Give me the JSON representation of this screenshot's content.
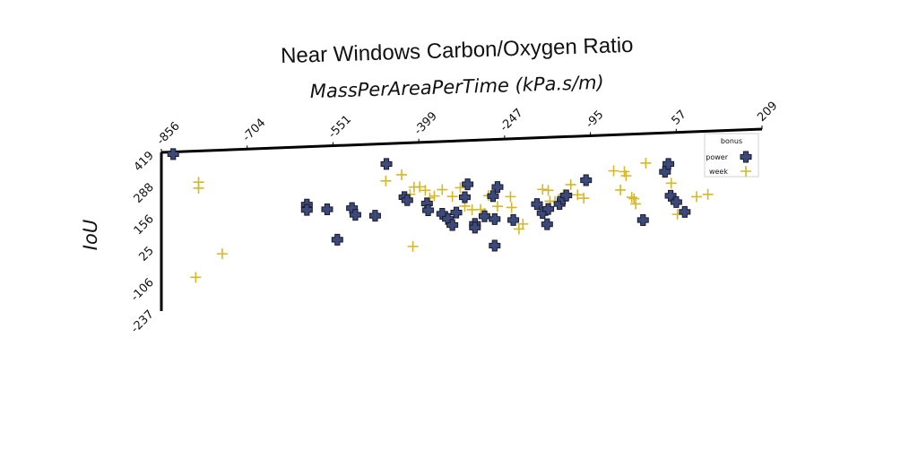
{
  "chart_data": {
    "type": "scatter",
    "title": "Near Windows Carbon/Oxygen Ratio",
    "xlabel": "MassPerAreaPerTime (kPa.s/m)",
    "ylabel": "IoU",
    "x_ticks": [
      "-856",
      "-704",
      "-551",
      "-399",
      "-247",
      "-95",
      "57",
      "209"
    ],
    "y_ticks": [
      "419",
      "288",
      "156",
      "25",
      "-106",
      "-237"
    ],
    "xlim": [
      -856,
      209
    ],
    "ylim": [
      -237,
      419
    ],
    "x_axis_position": "top",
    "grid": false,
    "legend": {
      "title": "bonus",
      "position": "top-right"
    },
    "series": [
      {
        "name": "power",
        "marker": "filled-plus",
        "color": "#3b4a7a",
        "points": [
          [
            -835,
            410
          ],
          [
            -598,
            180
          ],
          [
            -598,
            158
          ],
          [
            -562,
            157
          ],
          [
            -518,
            158
          ],
          [
            -512,
            130
          ],
          [
            -477,
            123
          ],
          [
            -544,
            30
          ],
          [
            -457,
            335
          ],
          [
            -425,
            195
          ],
          [
            -420,
            182
          ],
          [
            -385,
            165
          ],
          [
            -383,
            137
          ],
          [
            -358,
            120
          ],
          [
            -348,
            98
          ],
          [
            -340,
            72
          ],
          [
            -333,
            123
          ],
          [
            -318,
            185
          ],
          [
            -313,
            238
          ],
          [
            -300,
            73
          ],
          [
            -300,
            58
          ],
          [
            -283,
            103
          ],
          [
            -268,
            185
          ],
          [
            -265,
            90
          ],
          [
            -260,
            222
          ],
          [
            -232,
            83
          ],
          [
            -190,
            145
          ],
          [
            -180,
            107
          ],
          [
            -170,
            123
          ],
          [
            -150,
            142
          ],
          [
            -144,
            163
          ],
          [
            -138,
            176
          ],
          [
            -103,
            236
          ],
          [
            -2,
            62
          ],
          [
            37,
            258
          ],
          [
            43,
            290
          ],
          [
            47,
            158
          ],
          [
            57,
            131
          ],
          [
            72,
            89
          ],
          [
            -172,
            60
          ],
          [
            -265,
            -20
          ]
        ]
      },
      {
        "name": "week",
        "marker": "plus",
        "color": "#d4b82a",
        "points": [
          [
            -790,
            290
          ],
          [
            -790,
            265
          ],
          [
            -795,
            -103
          ],
          [
            -748,
            -10
          ],
          [
            -458,
            265
          ],
          [
            -430,
            288
          ],
          [
            -415,
            206
          ],
          [
            -408,
            235
          ],
          [
            -398,
            235
          ],
          [
            -388,
            220
          ],
          [
            -380,
            188
          ],
          [
            -372,
            195
          ],
          [
            -358,
            220
          ],
          [
            -340,
            190
          ],
          [
            -326,
            225
          ],
          [
            -318,
            148
          ],
          [
            -305,
            132
          ],
          [
            -290,
            132
          ],
          [
            -283,
            115
          ],
          [
            -276,
            188
          ],
          [
            -260,
            142
          ],
          [
            -237,
            180
          ],
          [
            -235,
            135
          ],
          [
            -222,
            45
          ],
          [
            -215,
            65
          ],
          [
            -180,
            205
          ],
          [
            -170,
            200
          ],
          [
            -167,
            155
          ],
          [
            -158,
            153
          ],
          [
            -143,
            180
          ],
          [
            -130,
            220
          ],
          [
            -118,
            177
          ],
          [
            -107,
            162
          ],
          [
            -54,
            270
          ],
          [
            -42,
            190
          ],
          [
            -35,
            265
          ],
          [
            -32,
            248
          ],
          [
            -22,
            158
          ],
          [
            -18,
            152
          ],
          [
            -15,
            130
          ],
          [
            3,
            297
          ],
          [
            48,
            210
          ],
          [
            59,
            80
          ],
          [
            93,
            150
          ],
          [
            113,
            158
          ],
          [
            -410,
            -10
          ]
        ]
      }
    ]
  }
}
